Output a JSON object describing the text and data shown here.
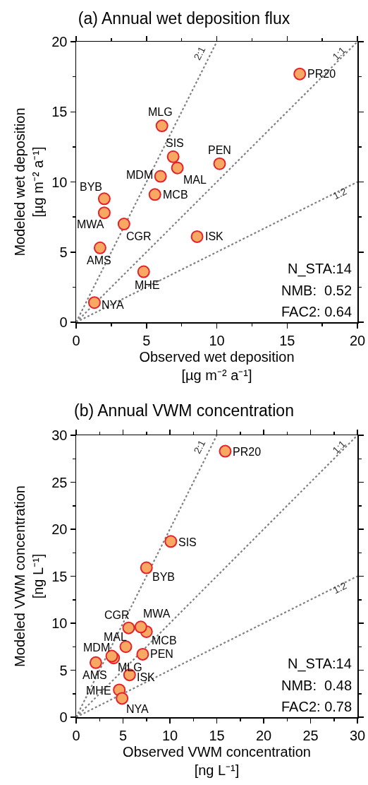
{
  "chart_data": [
    {
      "type": "scatter",
      "title": "(a) Annual wet deposition flux",
      "xlabel": "Observed wet deposition\n[µg m⁻² a⁻¹]",
      "ylabel": "Modeled wet deposition\n[µg m⁻² a⁻¹]",
      "xlim": [
        0,
        20
      ],
      "ylim": [
        0,
        20
      ],
      "xticks": [
        0,
        5,
        10,
        15,
        20
      ],
      "yticks": [
        0,
        5,
        10,
        15,
        20
      ],
      "marker": "circle",
      "series": [
        {
          "color": "#f7a964",
          "x": [
            15.9,
            6.1,
            6.9,
            7.2,
            10.2,
            6.0,
            5.6,
            2.0,
            2.0,
            3.4,
            8.6,
            1.7,
            4.8,
            1.3
          ],
          "values": [
            17.7,
            14.0,
            11.8,
            11.0,
            11.3,
            10.4,
            9.1,
            8.8,
            7.8,
            7.0,
            6.1,
            5.3,
            3.6,
            1.4
          ]
        },
        {
          "type": "line",
          "name": "2:1",
          "color": "#808080",
          "line_style": "dotted",
          "marker": "none",
          "x": [
            0,
            10
          ],
          "values": [
            0,
            20
          ]
        },
        {
          "type": "line",
          "name": "1:1",
          "color": "#808080",
          "line_style": "dotted",
          "marker": "none",
          "x": [
            0,
            20
          ],
          "values": [
            0,
            20
          ]
        },
        {
          "type": "line",
          "name": "1:2",
          "color": "#808080",
          "line_style": "dotted",
          "marker": "none",
          "x": [
            0,
            20
          ],
          "values": [
            0,
            10
          ]
        }
      ],
      "annotations": [
        {
          "text": "PR20",
          "x": 15.9,
          "y": 17.7
        },
        {
          "text": "MLG",
          "x": 6.1,
          "y": 14.0
        },
        {
          "text": "SIS",
          "x": 6.9,
          "y": 11.8
        },
        {
          "text": "MAL",
          "x": 7.2,
          "y": 11.0
        },
        {
          "text": "PEN",
          "x": 10.2,
          "y": 11.3
        },
        {
          "text": "MDM",
          "x": 6.0,
          "y": 10.4
        },
        {
          "text": "MCB",
          "x": 5.6,
          "y": 9.1
        },
        {
          "text": "BYB",
          "x": 2.0,
          "y": 8.8
        },
        {
          "text": "MWA",
          "x": 2.0,
          "y": 7.8
        },
        {
          "text": "CGR",
          "x": 3.4,
          "y": 7.0
        },
        {
          "text": "ISK",
          "x": 8.6,
          "y": 6.1
        },
        {
          "text": "AMS",
          "x": 1.7,
          "y": 5.3
        },
        {
          "text": "MHE",
          "x": 4.8,
          "y": 3.6
        },
        {
          "text": "NYA",
          "x": 1.3,
          "y": 1.4
        },
        "N_STA:14",
        "NMB:  0.52",
        "FAC2: 0.64"
      ]
    },
    {
      "type": "scatter",
      "title": "(b) Annual VWM concentration",
      "xlabel": "Observed VWM concentration\n[ng L⁻¹]",
      "ylabel": "Modeled VWM concentration\n[ng L⁻¹]",
      "xlim": [
        0,
        30
      ],
      "ylim": [
        0,
        30
      ],
      "xticks": [
        0,
        5,
        10,
        15,
        20,
        25,
        30
      ],
      "yticks": [
        0,
        5,
        10,
        15,
        20,
        25,
        30
      ],
      "marker": "circle",
      "series": [
        {
          "color": "#f7a964",
          "x": [
            15.9,
            4.0,
            10.1,
            5.3,
            7.1,
            3.8,
            7.5,
            7.5,
            6.9,
            5.6,
            5.7,
            2.1,
            4.6,
            4.9
          ],
          "values": [
            28.3,
            6.3,
            18.7,
            7.5,
            6.7,
            6.5,
            9.1,
            15.9,
            9.6,
            9.5,
            4.5,
            5.8,
            2.9,
            2.0
          ]
        },
        {
          "type": "line",
          "name": "2:1",
          "color": "#808080",
          "line_style": "dotted",
          "marker": "none",
          "x": [
            0,
            15
          ],
          "values": [
            0,
            30
          ]
        },
        {
          "type": "line",
          "name": "1:1",
          "color": "#808080",
          "line_style": "dotted",
          "marker": "none",
          "x": [
            0,
            30
          ],
          "values": [
            0,
            30
          ]
        },
        {
          "type": "line",
          "name": "1:2",
          "color": "#808080",
          "line_style": "dotted",
          "marker": "none",
          "x": [
            0,
            30
          ],
          "values": [
            0,
            15
          ]
        }
      ],
      "annotations": [
        {
          "text": "PR20",
          "x": 15.9,
          "y": 28.3
        },
        {
          "text": "MLG",
          "x": 4.0,
          "y": 6.3
        },
        {
          "text": "SIS",
          "x": 10.1,
          "y": 18.7
        },
        {
          "text": "MAL",
          "x": 5.3,
          "y": 7.5
        },
        {
          "text": "PEN",
          "x": 7.1,
          "y": 6.7
        },
        {
          "text": "MDM",
          "x": 3.8,
          "y": 6.5
        },
        {
          "text": "MCB",
          "x": 7.5,
          "y": 9.1
        },
        {
          "text": "BYB",
          "x": 7.5,
          "y": 15.9
        },
        {
          "text": "MWA",
          "x": 6.9,
          "y": 9.6
        },
        {
          "text": "CGR",
          "x": 5.6,
          "y": 9.5
        },
        {
          "text": "ISK",
          "x": 5.7,
          "y": 4.5
        },
        {
          "text": "AMS",
          "x": 2.1,
          "y": 5.8
        },
        {
          "text": "MHE",
          "x": 4.6,
          "y": 2.9
        },
        {
          "text": "NYA",
          "x": 4.9,
          "y": 2.0
        },
        "N_STA:14",
        "NMB:  0.48",
        "FAC2: 0.78"
      ]
    }
  ]
}
